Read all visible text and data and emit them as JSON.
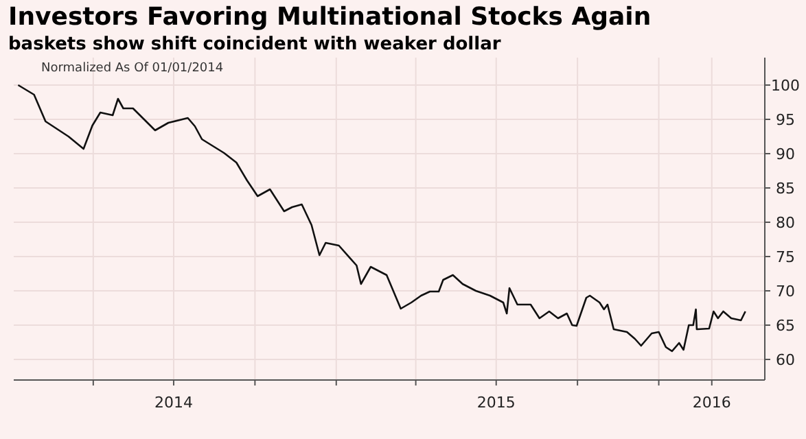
{
  "chart_data": {
    "type": "line",
    "title": "Investors Favoring Multinational Stocks Again",
    "subtitle": "baskets show shift coincident with weaker dollar",
    "annotations": [
      "Normalized As Of 01/01/2014"
    ],
    "grid": true,
    "x": [
      "2014-01-06",
      "2014-01-24",
      "2014-02-06",
      "2014-03-04",
      "2014-03-21",
      "2014-03-31",
      "2014-04-09",
      "2014-04-23",
      "2014-04-29",
      "2014-05-05",
      "2014-05-16",
      "2014-06-10",
      "2014-06-25",
      "2014-07-17",
      "2014-07-25",
      "2014-08-02",
      "2014-08-27",
      "2014-09-10",
      "2014-09-22",
      "2014-10-04",
      "2014-10-18",
      "2014-11-03",
      "2014-11-12",
      "2014-11-23",
      "2014-12-04",
      "2014-12-13",
      "2014-12-20",
      "2015-01-04",
      "2015-01-24",
      "2015-01-29",
      "2015-02-09",
      "2015-02-27",
      "2015-03-15",
      "2015-03-27",
      "2015-04-07",
      "2015-04-17",
      "2015-04-27",
      "2015-05-02",
      "2015-05-13",
      "2015-05-24",
      "2015-06-08",
      "2015-06-24",
      "2015-07-09",
      "2015-07-13",
      "2015-07-16",
      "2015-07-25",
      "2015-08-09",
      "2015-08-19",
      "2015-08-30",
      "2015-09-09",
      "2015-09-19",
      "2015-09-25",
      "2015-09-30",
      "2015-10-11",
      "2015-10-15",
      "2015-10-26",
      "2015-10-31",
      "2015-11-04",
      "2015-11-11",
      "2015-11-26",
      "2015-12-05",
      "2015-12-12",
      "2015-12-24",
      "2016-01-01",
      "2016-01-09",
      "2016-01-16",
      "2016-01-24",
      "2016-01-29",
      "2016-02-04",
      "2016-02-09",
      "2016-02-12",
      "2016-02-13",
      "2016-02-27",
      "2016-03-03",
      "2016-03-08",
      "2016-03-14",
      "2016-03-23",
      "2016-04-03",
      "2016-04-08"
    ],
    "series": [
      {
        "color": "#111111",
        "values": [
          100,
          98.6,
          94.7,
          92.5,
          90.7,
          94.1,
          96,
          95.6,
          98,
          96.6,
          96.6,
          93.4,
          94.5,
          95.2,
          94,
          92.1,
          90.1,
          88.7,
          86.1,
          83.8,
          84.8,
          81.6,
          82.2,
          82.6,
          79.6,
          75.2,
          77,
          76.6,
          73.7,
          71,
          73.5,
          72.3,
          67.4,
          68.3,
          69.3,
          69.9,
          69.9,
          71.6,
          72.3,
          71,
          70,
          69.3,
          68.3,
          66.7,
          70.4,
          68,
          68,
          66,
          67,
          66,
          66.7,
          65,
          64.9,
          69,
          69.3,
          68.3,
          67.3,
          68,
          64.4,
          64,
          63,
          62,
          63.8,
          64,
          61.8,
          61.2,
          62.4,
          61.4,
          65,
          65,
          67.3,
          64.4,
          64.5,
          67,
          66,
          67,
          66,
          65.7,
          67
        ]
      }
    ],
    "xlim": [
      "2014-01-01",
      "2016-04-30"
    ],
    "xticks": [
      {
        "value": "2014-04-01",
        "label": null
      },
      {
        "value": "2014-07-01",
        "label": "2014"
      },
      {
        "value": "2014-10-01",
        "label": null
      },
      {
        "value": "2015-01-01",
        "label": null
      },
      {
        "value": "2015-04-01",
        "label": null
      },
      {
        "value": "2015-07-01",
        "label": "2015"
      },
      {
        "value": "2015-10-01",
        "label": null
      },
      {
        "value": "2016-01-01",
        "label": null
      },
      {
        "value": "2016-03-01",
        "label": "2016"
      }
    ],
    "ylim": [
      57,
      104
    ],
    "yticks": [
      60,
      65,
      70,
      75,
      80,
      85,
      90,
      95,
      100
    ]
  }
}
